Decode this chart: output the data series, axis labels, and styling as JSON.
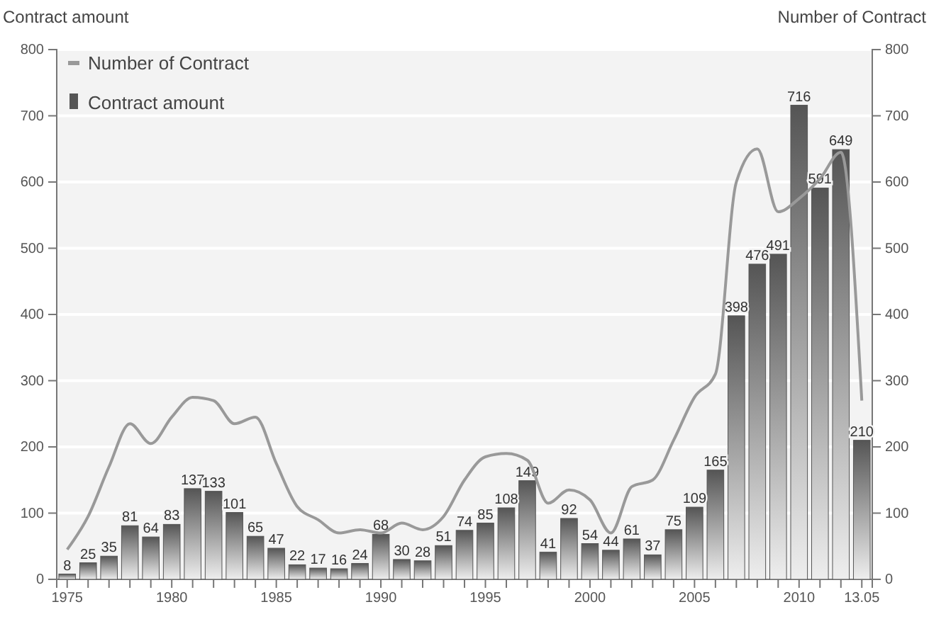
{
  "chart_data": {
    "type": "bar",
    "ylabel": "Contract amount",
    "y2label": "Number of Contract",
    "categories": [
      "1975",
      null,
      null,
      null,
      null,
      "1980",
      null,
      null,
      null,
      null,
      "1985",
      null,
      null,
      null,
      null,
      "1990",
      null,
      null,
      null,
      null,
      "1995",
      null,
      null,
      null,
      null,
      "2000",
      null,
      null,
      null,
      null,
      "2005",
      null,
      null,
      null,
      null,
      "2010",
      null,
      null,
      "13.05"
    ],
    "series": [
      {
        "name": "Number of Contract",
        "type": "line",
        "axis": "y2",
        "color": "#999999",
        "values": [
          45,
          95,
          170,
          235,
          205,
          245,
          275,
          270,
          235,
          245,
          175,
          110,
          90,
          70,
          75,
          70,
          85,
          75,
          95,
          150,
          185,
          190,
          180,
          115,
          135,
          120,
          70,
          140,
          150,
          210,
          275,
          310,
          600,
          650,
          555,
          575,
          605,
          645,
          270
        ]
      },
      {
        "name": "Contract amount",
        "color": "#555555",
        "values": [
          8,
          25,
          35,
          81,
          64,
          83,
          137,
          133,
          101,
          65,
          47,
          22,
          17,
          16,
          24,
          68,
          30,
          28,
          51,
          74,
          85,
          108,
          149,
          41,
          92,
          54,
          44,
          61,
          37,
          75,
          109,
          165,
          398,
          476,
          491,
          716,
          591,
          649,
          210
        ],
        "value_labels": [
          "8",
          "25",
          "35",
          "81",
          "64",
          "83",
          "137",
          "133",
          "101",
          "65",
          "47",
          "22",
          "17",
          "16",
          "24",
          "68",
          "30",
          "28",
          "51",
          "74",
          "85",
          "108",
          "149",
          "41",
          "92",
          "54",
          "44",
          "61",
          "37",
          "75",
          "109",
          "165",
          "398",
          "476",
          "491",
          "716",
          "591",
          "649",
          "210"
        ]
      }
    ],
    "ylim": [
      0,
      800
    ],
    "yticks": [
      0,
      100,
      200,
      300,
      400,
      500,
      600,
      700,
      800
    ],
    "y2lim": [
      0,
      800
    ],
    "y2ticks": [
      0,
      100,
      200,
      300,
      400,
      500,
      600,
      700,
      800
    ],
    "grid": "y",
    "legend": "top left"
  }
}
